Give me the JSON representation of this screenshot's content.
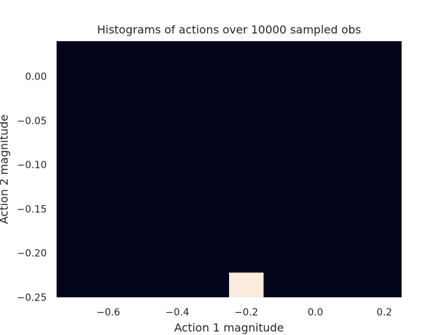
{
  "chart_data": {
    "type": "heatmap",
    "title": "Histograms of actions over 10000 sampled obs",
    "xlabel": "Action 1 magnitude",
    "ylabel": "Action 2 magnitude",
    "xlim": [
      -0.75,
      0.25
    ],
    "ylim": [
      -0.25,
      0.04
    ],
    "xticks": [
      -0.6,
      -0.4,
      -0.2,
      0.0,
      0.2
    ],
    "yticks": [
      0.0,
      -0.05,
      -0.1,
      -0.15,
      -0.2,
      -0.25
    ],
    "xtick_labels": [
      "−0.6",
      "−0.4",
      "−0.2",
      "0.0",
      "0.2"
    ],
    "ytick_labels": [
      "0.00",
      "−0.05",
      "−0.10",
      "−0.15",
      "−0.20",
      "−0.25"
    ],
    "grid": false,
    "background_color": "#03051a",
    "highlight_color": "#faebdd",
    "cells": [
      {
        "x0": -0.25,
        "x1": -0.15,
        "y0": -0.25,
        "y1": -0.222,
        "count": 10000
      }
    ]
  }
}
